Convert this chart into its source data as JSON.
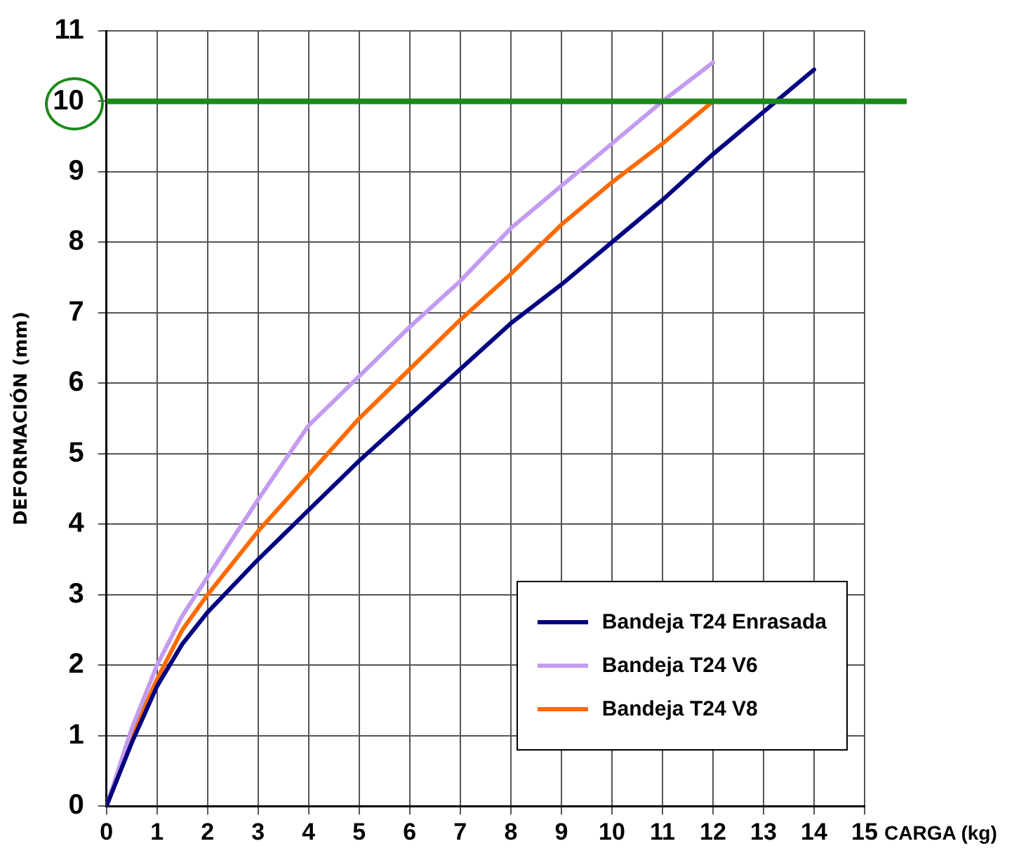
{
  "chart_data": {
    "type": "line",
    "xlabel": "CARGA (kg)",
    "ylabel": "DEFORMACIÓN (mm)",
    "xlim": [
      0,
      15
    ],
    "xticks": [
      0,
      1,
      2,
      3,
      4,
      5,
      6,
      7,
      8,
      9,
      10,
      11,
      12,
      13,
      14,
      15
    ],
    "ylim": [
      0,
      11
    ],
    "yticks": [
      0,
      1,
      2,
      3,
      4,
      5,
      6,
      7,
      8,
      9,
      10,
      11
    ],
    "grid": true,
    "legend": "bottom right",
    "marker": "none",
    "line_style": "solid",
    "series": [
      {
        "name": "Bandeja T24 Enrasada",
        "color": "#000080",
        "x": [
          0,
          0.5,
          1,
          1.5,
          2,
          3,
          4,
          5,
          6,
          7,
          8,
          9,
          10,
          11,
          12,
          13,
          14
        ],
        "values": [
          0,
          0.9,
          1.7,
          2.3,
          2.75,
          3.5,
          4.2,
          4.9,
          5.55,
          6.2,
          6.85,
          7.4,
          8.0,
          8.6,
          9.25,
          9.85,
          10.45
        ]
      },
      {
        "name": "Bandeja T24 V6",
        "color": "#c39bf0",
        "x": [
          0,
          0.5,
          1,
          1.5,
          2,
          3,
          4,
          5,
          6,
          7,
          8,
          9,
          10,
          11,
          12
        ],
        "values": [
          0,
          1.1,
          2.0,
          2.7,
          3.25,
          4.35,
          5.4,
          6.1,
          6.8,
          7.45,
          8.2,
          8.8,
          9.4,
          10.0,
          10.55
        ]
      },
      {
        "name": "Bandeja T24 V8",
        "color": "#ff6a00",
        "x": [
          0,
          0.5,
          1,
          1.5,
          2,
          3,
          4,
          5,
          6,
          7,
          8,
          9,
          10,
          11,
          12
        ],
        "values": [
          0,
          1.0,
          1.8,
          2.5,
          3.0,
          3.9,
          4.7,
          5.5,
          6.2,
          6.9,
          7.55,
          8.25,
          8.85,
          9.4,
          10.0
        ]
      }
    ],
    "ref_lines": [
      {
        "axis": "y",
        "value": 10,
        "color": "#1a8a1a"
      }
    ]
  }
}
